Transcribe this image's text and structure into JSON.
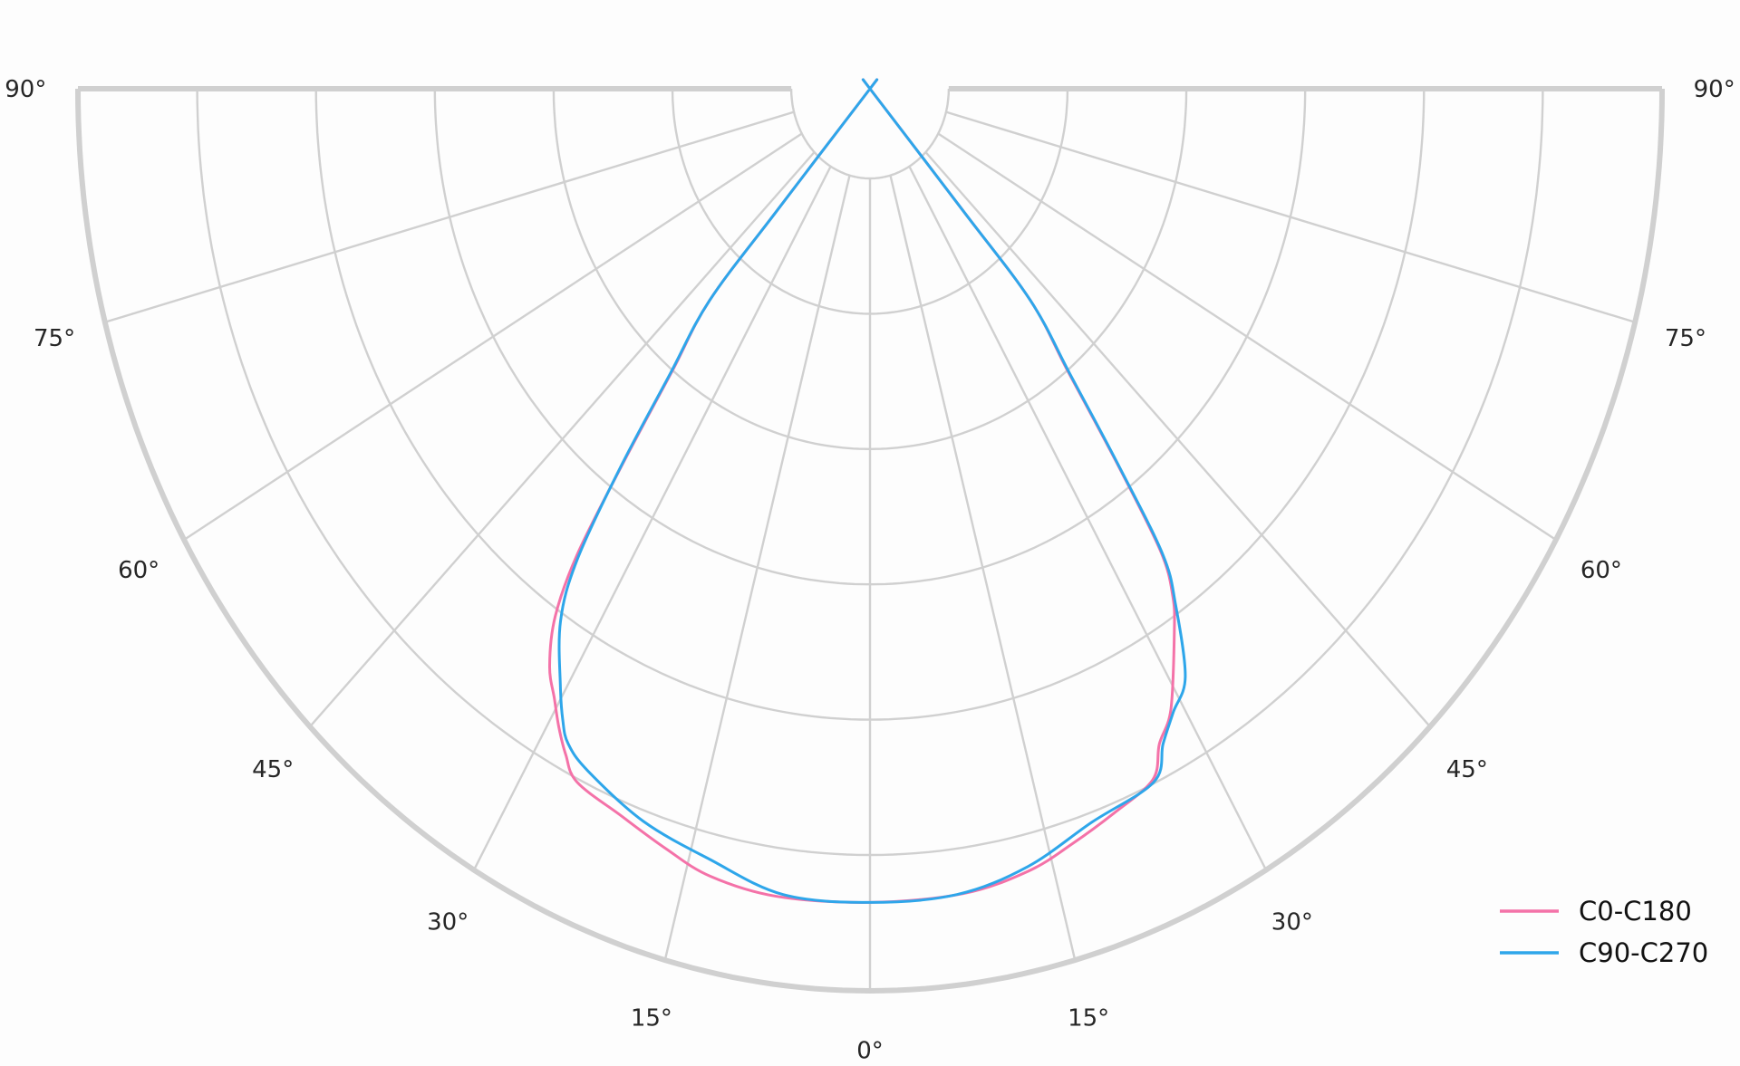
{
  "chart_data": {
    "type": "polar-line",
    "title": "",
    "angle_unit": "degrees",
    "angle_ticks": [
      "90°",
      "75°",
      "60°",
      "45°",
      "30°",
      "15°",
      "0°",
      "15°",
      "30°",
      "45°",
      "60°",
      "75°",
      "90°"
    ],
    "angle_tick_values": [
      -90,
      -75,
      -60,
      -45,
      -30,
      -15,
      0,
      15,
      30,
      45,
      60,
      75,
      90
    ],
    "radial_range": [
      0,
      100
    ],
    "radial_gridlines": [
      9.94,
      24.94,
      39.94,
      54.94,
      69.94,
      84.94,
      100
    ],
    "radial_tick_labels_shown": false,
    "grid": true,
    "legend_position": "bottom-right",
    "series": [
      {
        "name": "C0-C180",
        "color": "#f472a8",
        "points": [
          [
            -90,
            0
          ],
          [
            -42,
            0
          ],
          [
            -41,
            18
          ],
          [
            -40.8,
            31
          ],
          [
            -38.6,
            40
          ],
          [
            -36.9,
            52
          ],
          [
            -35.6,
            63.5
          ],
          [
            -34.2,
            70.7
          ],
          [
            -32.3,
            75.7
          ],
          [
            -30.5,
            78.5
          ],
          [
            -29,
            81
          ],
          [
            -27.5,
            83.2
          ],
          [
            -25.7,
            85.3
          ],
          [
            -21.3,
            86.5
          ],
          [
            -17,
            88.1
          ],
          [
            -13,
            89.6
          ],
          [
            -7.5,
            90.3
          ],
          [
            0,
            90.2
          ],
          [
            7.5,
            90
          ],
          [
            13,
            89
          ],
          [
            17,
            87.5
          ],
          [
            21,
            86
          ],
          [
            25,
            84.5
          ],
          [
            26.7,
            81.3
          ],
          [
            28.9,
            78.6
          ],
          [
            32.5,
            71.5
          ],
          [
            34.2,
            68
          ],
          [
            35.6,
            63
          ],
          [
            36.9,
            52
          ],
          [
            38.6,
            40
          ],
          [
            40.8,
            31
          ],
          [
            41,
            18
          ],
          [
            42,
            0
          ],
          [
            90,
            0
          ]
        ]
      },
      {
        "name": "C90-C270",
        "color": "#2ea6ea",
        "points": [
          [
            -90,
            0
          ],
          [
            -42,
            0
          ],
          [
            -41,
            18
          ],
          [
            -40.8,
            31
          ],
          [
            -38.6,
            40.5
          ],
          [
            -36.9,
            52.5
          ],
          [
            -35.3,
            64
          ],
          [
            -33.5,
            70.8
          ],
          [
            -30.5,
            77
          ],
          [
            -29,
            80
          ],
          [
            -27.7,
            82
          ],
          [
            -25.2,
            83.6
          ],
          [
            -19.4,
            86.1
          ],
          [
            -13.3,
            87.8
          ],
          [
            -7,
            90
          ],
          [
            0,
            90.2
          ],
          [
            7,
            90
          ],
          [
            13,
            88.5
          ],
          [
            19,
            86
          ],
          [
            25,
            84.8
          ],
          [
            27,
            81.5
          ],
          [
            29,
            79
          ],
          [
            31.4,
            76.4
          ],
          [
            34,
            69
          ],
          [
            35.6,
            63.5
          ],
          [
            36.9,
            52.5
          ],
          [
            38.6,
            40.5
          ],
          [
            40.8,
            31
          ],
          [
            41,
            18
          ],
          [
            42,
            0
          ],
          [
            90,
            0
          ]
        ]
      }
    ]
  }
}
